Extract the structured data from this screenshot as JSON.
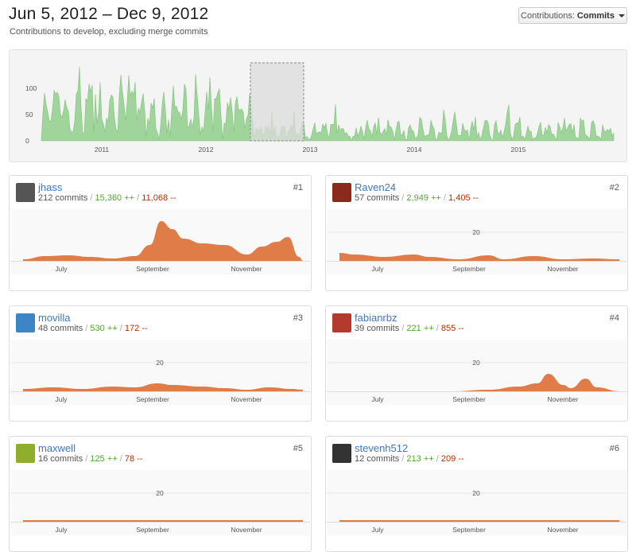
{
  "header": {
    "title": "Jun 5, 2012 – Dec 9, 2012",
    "subtitle": "Contributions to develop, excluding merge commits",
    "selector_prefix": "Contributions: ",
    "selector_value": "Commits"
  },
  "overview": {
    "y_ticks": [
      "100",
      "50",
      "0"
    ],
    "x_ticks": [
      "2011",
      "2012",
      "2013",
      "2014",
      "2015"
    ],
    "fill_color": "#9fd49a",
    "selection_color": "#dcdcdc"
  },
  "month_labels": [
    "July",
    "September",
    "November"
  ],
  "scale_label": "20",
  "contributors": [
    {
      "name": "jhass",
      "rank": "#1",
      "commits": "212 commits",
      "additions": "15,360 ++",
      "deletions": "11,068 --",
      "avatar_color": "#555"
    },
    {
      "name": "Raven24",
      "rank": "#2",
      "commits": "57 commits",
      "additions": "2,949 ++",
      "deletions": "1,405 --",
      "avatar_color": "#8b2a1a"
    },
    {
      "name": "movilla",
      "rank": "#3",
      "commits": "48 commits",
      "additions": "530 ++",
      "deletions": "172 --",
      "avatar_color": "#3d86c6"
    },
    {
      "name": "fabianrbz",
      "rank": "#4",
      "commits": "39 commits",
      "additions": "221 ++",
      "deletions": "855 --",
      "avatar_color": "#b43a2f"
    },
    {
      "name": "maxwell",
      "rank": "#5",
      "commits": "16 commits",
      "additions": "125 ++",
      "deletions": "78 --",
      "avatar_color": "#8fae2c"
    },
    {
      "name": "stevenh512",
      "rank": "#6",
      "commits": "12 commits",
      "additions": "213 ++",
      "deletions": "209 --",
      "avatar_color": "#333"
    }
  ],
  "colors": {
    "area_orange": "#e07c48",
    "link_blue": "#4078c0",
    "add_green": "#55a532",
    "del_red": "#bd2c00"
  }
}
